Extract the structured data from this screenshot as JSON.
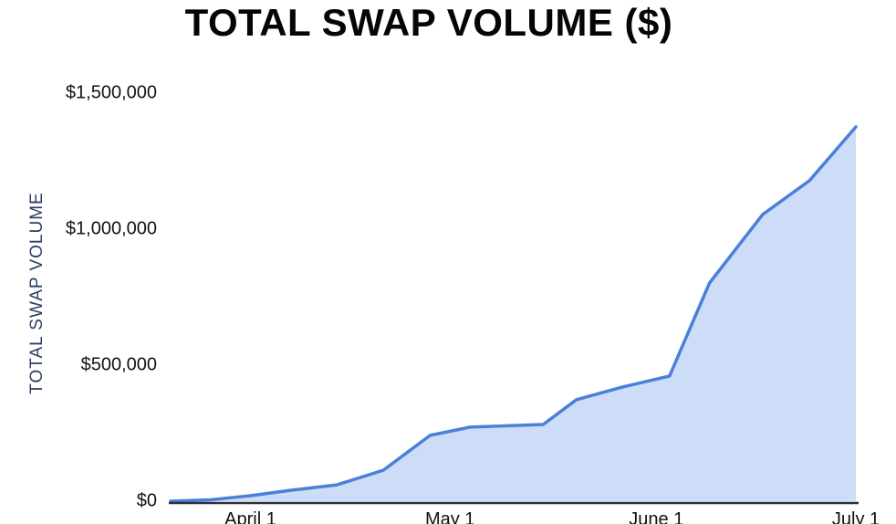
{
  "chart": {
    "title": "TOTAL SWAP VOLUME ($)",
    "ylabel": "TOTAL SWAP VOLUME"
  },
  "chart_data": {
    "type": "area",
    "title": "TOTAL SWAP VOLUME ($)",
    "xlabel": "",
    "ylabel": "TOTAL SWAP VOLUME",
    "grid": false,
    "legend": false,
    "ylim": [
      0,
      1500000
    ],
    "x_domain_days": [
      0,
      103
    ],
    "x_ticks": [
      {
        "label": "April 1",
        "day": 12
      },
      {
        "label": "May 1",
        "day": 42
      },
      {
        "label": "June 1",
        "day": 73
      },
      {
        "label": "July 1",
        "day": 103
      }
    ],
    "y_ticks": [
      {
        "label": "$0",
        "value": 0
      },
      {
        "label": "$500,000",
        "value": 500000
      },
      {
        "label": "$1,000,000",
        "value": 1000000
      },
      {
        "label": "$1,500,000",
        "value": 1500000
      }
    ],
    "series": [
      {
        "points": [
          {
            "date": "Mar 20",
            "day": 0,
            "value": 0
          },
          {
            "date": "Mar 26",
            "day": 6,
            "value": 5000
          },
          {
            "date": "Apr 1",
            "day": 12,
            "value": 20000
          },
          {
            "date": "Apr 7",
            "day": 18,
            "value": 40000
          },
          {
            "date": "Apr 14",
            "day": 25,
            "value": 60000
          },
          {
            "date": "Apr 21",
            "day": 32,
            "value": 114000
          },
          {
            "date": "Apr 28",
            "day": 39,
            "value": 242000
          },
          {
            "date": "May 4",
            "day": 45,
            "value": 272000
          },
          {
            "date": "May 15",
            "day": 56,
            "value": 282000
          },
          {
            "date": "May 20",
            "day": 61,
            "value": 373000
          },
          {
            "date": "May 27",
            "day": 68,
            "value": 420000
          },
          {
            "date": "Jun 3",
            "day": 75,
            "value": 460000
          },
          {
            "date": "Jun 9",
            "day": 81,
            "value": 802000
          },
          {
            "date": "Jun 17",
            "day": 89,
            "value": 1054000
          },
          {
            "date": "Jun 24",
            "day": 96,
            "value": 1178000
          },
          {
            "date": "Jul 1",
            "day": 103,
            "value": 1376000
          }
        ]
      }
    ],
    "colors": {
      "line": "#4a80d8",
      "fill": "#cdddf7",
      "axis_line": "#2b2e3b",
      "axis_title": "#2c3e63",
      "tick_label": "#111111",
      "title": "#050505"
    }
  }
}
